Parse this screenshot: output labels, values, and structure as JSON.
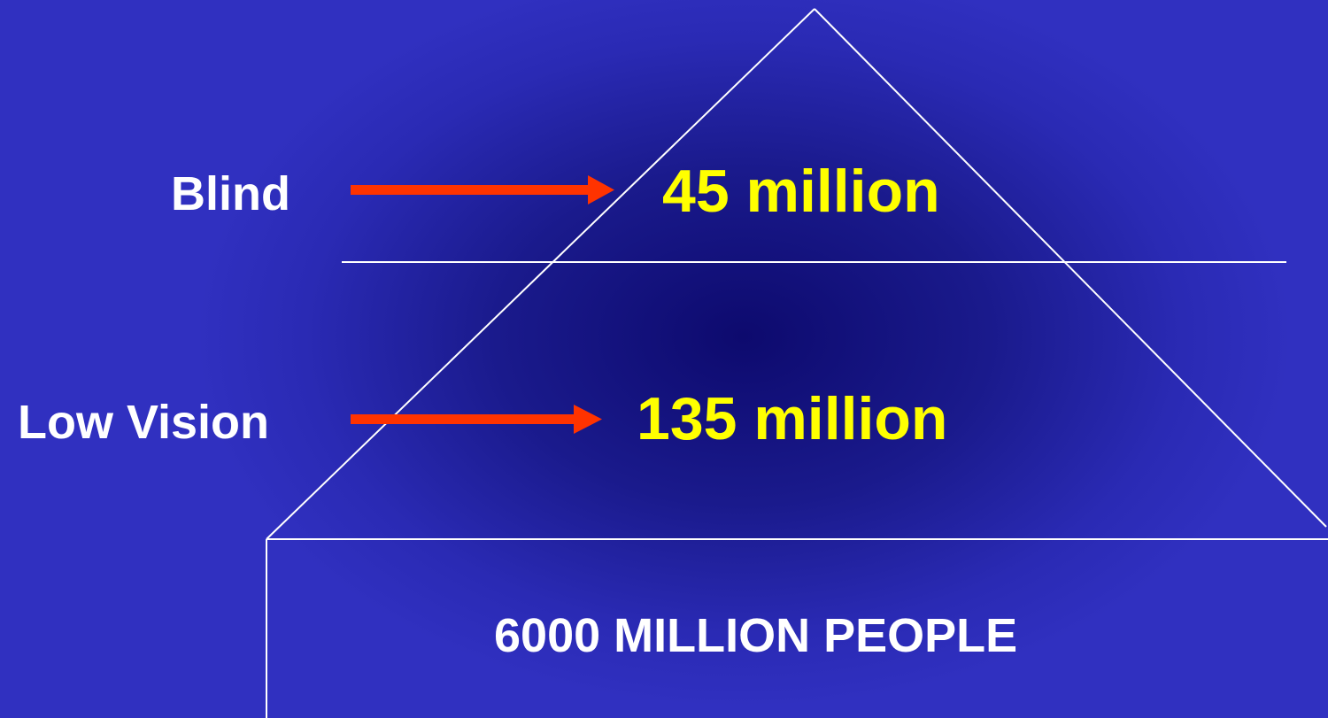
{
  "levels": {
    "blind": {
      "label": "Blind",
      "value": "45 million"
    },
    "low_vision": {
      "label": "Low Vision",
      "value": "135 million"
    },
    "base": {
      "value": "6000 MILLION PEOPLE"
    }
  },
  "colors": {
    "value_text": "#ffff00",
    "label_text": "#ffffff",
    "arrow": "#ff3300",
    "lines": "#ffffff"
  }
}
